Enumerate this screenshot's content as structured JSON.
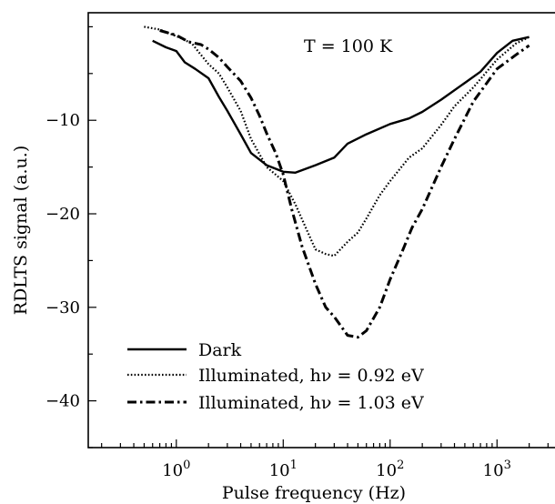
{
  "chart_data": {
    "type": "line",
    "title": "",
    "xlabel": "Pulse frequency (Hz)",
    "ylabel": "RDLTS signal (a.u.)",
    "x_scale": "log",
    "xlim": [
      0.15,
      4000
    ],
    "ylim": [
      -45,
      1.5
    ],
    "x_ticks": [
      {
        "value": 1,
        "base": "10",
        "exp": "0"
      },
      {
        "value": 10,
        "base": "10",
        "exp": "1"
      },
      {
        "value": 100,
        "base": "10",
        "exp": "2"
      },
      {
        "value": 1000,
        "base": "10",
        "exp": "3"
      }
    ],
    "y_ticks": [
      {
        "value": -10,
        "label": "−10"
      },
      {
        "value": -20,
        "label": "−20"
      },
      {
        "value": -30,
        "label": "−30"
      },
      {
        "value": -40,
        "label": "−40"
      }
    ],
    "annotation": "T = 100 K",
    "grid": false,
    "legend_position": "bottom-left",
    "series": [
      {
        "name": "Dark",
        "style": "solid",
        "x": [
          0.6,
          0.8,
          1.0,
          1.2,
          1.5,
          2.0,
          2.5,
          3.0,
          4.0,
          5.0,
          7.0,
          10.0,
          13.0,
          20.0,
          30.0,
          40.0,
          60.0,
          100.0,
          150.0,
          200.0,
          300.0,
          500.0,
          700.0,
          1000.0,
          1400.0,
          2000.0
        ],
        "y": [
          -1.5,
          -2.2,
          -2.6,
          -3.8,
          -4.5,
          -5.5,
          -7.5,
          -9.0,
          -11.5,
          -13.5,
          -14.8,
          -15.5,
          -15.6,
          -14.8,
          -14.0,
          -12.5,
          -11.5,
          -10.4,
          -9.8,
          -9.1,
          -7.8,
          -6.0,
          -4.8,
          -2.8,
          -1.5,
          -1.1
        ]
      },
      {
        "name": "Illuminated, hν = 0.92 eV",
        "style": "dotted",
        "x": [
          0.5,
          0.7,
          0.9,
          1.1,
          1.4,
          1.7,
          2.0,
          2.5,
          3.0,
          4.0,
          5.0,
          7.0,
          10.0,
          13.0,
          17.0,
          20.0,
          25.0,
          30.0,
          40.0,
          50.0,
          60.0,
          80.0,
          100.0,
          150.0,
          200.0,
          300.0,
          400.0,
          600.0,
          1000.0,
          1500.0,
          2000.0
        ],
        "y": [
          0.0,
          -0.3,
          -0.8,
          -1.2,
          -1.8,
          -3.0,
          -4.0,
          -5.0,
          -6.5,
          -9.0,
          -12.0,
          -15.0,
          -16.5,
          -19.0,
          -22.0,
          -23.8,
          -24.3,
          -24.5,
          -23.0,
          -22.0,
          -20.5,
          -18.0,
          -16.5,
          -14.0,
          -13.0,
          -10.5,
          -8.5,
          -6.5,
          -3.5,
          -1.8,
          -1.1
        ]
      },
      {
        "name": "Illuminated, hν = 1.03 eV",
        "style": "dashdot",
        "x": [
          0.7,
          1.0,
          1.3,
          1.7,
          2.0,
          2.5,
          3.0,
          4.0,
          5.0,
          6.0,
          7.0,
          8.5,
          10.0,
          12.0,
          15.0,
          20.0,
          25.0,
          30.0,
          40.0,
          50.0,
          60.0,
          80.0,
          100.0,
          130.0,
          160.0,
          200.0,
          300.0,
          400.0,
          600.0,
          1000.0,
          1500.0,
          2000.0
        ],
        "y": [
          -0.4,
          -0.9,
          -1.6,
          -1.9,
          -2.4,
          -3.3,
          -4.3,
          -5.8,
          -7.6,
          -9.5,
          -11.4,
          -13.5,
          -15.8,
          -19.5,
          -23.5,
          -27.5,
          -30.0,
          -31.0,
          -33.0,
          -33.2,
          -32.5,
          -30.0,
          -27.0,
          -24.0,
          -21.5,
          -19.5,
          -15.0,
          -12.0,
          -8.0,
          -4.5,
          -3.0,
          -2.0
        ]
      }
    ]
  }
}
